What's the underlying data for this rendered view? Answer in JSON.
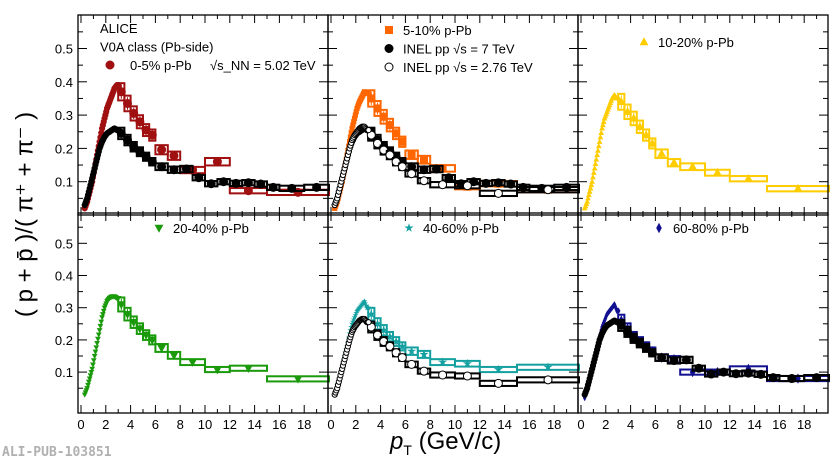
{
  "chart_data": {
    "type": "scatter",
    "title": "",
    "xlabel": "p_T (GeV/c)",
    "ylabel": "( p + p̄ )/( π⁺ + π⁻ )",
    "xlim": [
      -0.25,
      19.9
    ],
    "ylim": [
      0,
      0.6
    ],
    "x_ticks": [
      "0",
      "2",
      "4",
      "6",
      "8",
      "10",
      "12",
      "14",
      "16",
      "18"
    ],
    "y_ticks": [
      "0.1",
      "0.2",
      "0.3",
      "0.4",
      "0.5"
    ],
    "grid": false,
    "low_pt_x": [
      0.3,
      0.5,
      0.7,
      0.9,
      1.1,
      1.3,
      1.5,
      1.7,
      1.9,
      2.1,
      2.3,
      2.5,
      2.7,
      2.9
    ],
    "series": {
      "pp7": {
        "name": "INEL pp √s = 7 TeV",
        "color": "#000000",
        "marker": "circle",
        "filled": true,
        "low": [
          0.03,
          0.05,
          0.08,
          0.11,
          0.14,
          0.17,
          0.2,
          0.22,
          0.235,
          0.245,
          0.25,
          0.255,
          0.26,
          0.255
        ],
        "high": [
          [
            3.25,
            0.25,
            0.245
          ],
          [
            3.75,
            0.25,
            0.225
          ],
          [
            4.25,
            0.25,
            0.205
          ],
          [
            4.75,
            0.25,
            0.19
          ],
          [
            5.25,
            0.25,
            0.175
          ],
          [
            5.75,
            0.25,
            0.16
          ],
          [
            6.5,
            0.5,
            0.145
          ],
          [
            7.5,
            0.5,
            0.136
          ],
          [
            8.5,
            0.5,
            0.138
          ],
          [
            9.5,
            0.5,
            0.112
          ],
          [
            10.5,
            0.5,
            0.094
          ],
          [
            11.5,
            0.5,
            0.1
          ],
          [
            12.5,
            0.5,
            0.095
          ],
          [
            13.5,
            0.5,
            0.097
          ],
          [
            14.5,
            0.5,
            0.093
          ],
          [
            15.5,
            0.5,
            0.083
          ],
          [
            17,
            1,
            0.08
          ],
          [
            19,
            1,
            0.083
          ]
        ]
      },
      "pp276": {
        "name": "INEL pp √s = 2.76 TeV",
        "color": "#000000",
        "marker": "circle",
        "filled": false,
        "low": [
          0.03,
          0.05,
          0.08,
          0.11,
          0.14,
          0.17,
          0.2,
          0.225,
          0.24,
          0.25,
          0.26,
          0.265,
          0.265,
          0.255
        ],
        "high": [
          [
            3.25,
            0.25,
            0.24
          ],
          [
            3.75,
            0.25,
            0.215
          ],
          [
            4.25,
            0.25,
            0.195
          ],
          [
            4.75,
            0.25,
            0.18
          ],
          [
            5.25,
            0.25,
            0.16
          ],
          [
            5.75,
            0.25,
            0.145
          ],
          [
            6.5,
            0.5,
            0.124
          ],
          [
            7.5,
            0.5,
            0.103
          ],
          [
            9,
            1,
            0.091
          ],
          [
            11,
            1,
            0.088
          ],
          [
            13.5,
            1.5,
            0.065
          ],
          [
            17.5,
            2.5,
            0.076
          ]
        ]
      },
      "pPb0_5": {
        "name": "0-5% p-Pb",
        "color": "#a01010",
        "marker": "circle",
        "filled": true,
        "low": [
          0.02,
          0.04,
          0.07,
          0.1,
          0.14,
          0.18,
          0.22,
          0.26,
          0.29,
          0.32,
          0.34,
          0.36,
          0.38,
          0.39
        ],
        "high": [
          [
            3.25,
            0.25,
            0.37
          ],
          [
            3.75,
            0.25,
            0.335
          ],
          [
            4.25,
            0.25,
            0.305
          ],
          [
            4.75,
            0.25,
            0.28
          ],
          [
            5.25,
            0.25,
            0.255
          ],
          [
            5.75,
            0.25,
            0.24
          ],
          [
            6.5,
            0.5,
            0.196
          ],
          [
            7.5,
            0.5,
            0.178
          ],
          [
            9,
            1,
            0.135
          ],
          [
            11,
            1,
            0.16
          ],
          [
            13.5,
            1.5,
            0.073
          ],
          [
            17.5,
            2.5,
            0.068
          ]
        ]
      },
      "pPb5_10": {
        "name": "5-10% p-Pb",
        "color": "#ff6600",
        "marker": "square",
        "filled": true,
        "low": [
          0.02,
          0.04,
          0.07,
          0.1,
          0.14,
          0.18,
          0.22,
          0.26,
          0.29,
          0.32,
          0.34,
          0.355,
          0.37,
          0.365
        ],
        "high": [
          [
            3.25,
            0.25,
            0.35
          ],
          [
            3.75,
            0.25,
            0.32
          ],
          [
            4.25,
            0.25,
            0.295
          ],
          [
            4.75,
            0.25,
            0.27
          ],
          [
            5.25,
            0.25,
            0.245
          ],
          [
            5.75,
            0.25,
            0.22
          ],
          [
            6.5,
            0.5,
            0.181
          ],
          [
            7.5,
            0.5,
            0.166
          ],
          [
            9,
            1,
            0.14
          ],
          [
            11,
            1,
            0.085
          ],
          [
            13.5,
            1.5,
            0.094
          ],
          [
            17.5,
            2.5,
            0.076
          ]
        ]
      },
      "pPb10_20": {
        "name": "10-20% p-Pb",
        "color": "#ffcc00",
        "marker": "triangle-up",
        "filled": true,
        "low": [
          0.02,
          0.04,
          0.07,
          0.1,
          0.14,
          0.18,
          0.22,
          0.26,
          0.29,
          0.31,
          0.33,
          0.35,
          0.36,
          0.35
        ],
        "high": [
          [
            3.25,
            0.25,
            0.34
          ],
          [
            3.75,
            0.25,
            0.31
          ],
          [
            4.25,
            0.25,
            0.29
          ],
          [
            4.75,
            0.25,
            0.265
          ],
          [
            5.25,
            0.25,
            0.24
          ],
          [
            5.75,
            0.25,
            0.215
          ],
          [
            6.5,
            0.5,
            0.184
          ],
          [
            7.5,
            0.5,
            0.157
          ],
          [
            9,
            1,
            0.145
          ],
          [
            11,
            1,
            0.127
          ],
          [
            13.5,
            1.5,
            0.109
          ],
          [
            17.5,
            2.5,
            0.079
          ]
        ]
      },
      "pPb20_40": {
        "name": "20-40% p-Pb",
        "color": "#1a9a0a",
        "marker": "triangle-down",
        "filled": true,
        "low": [
          0.03,
          0.05,
          0.08,
          0.11,
          0.15,
          0.19,
          0.23,
          0.27,
          0.3,
          0.32,
          0.33,
          0.335,
          0.335,
          0.33
        ],
        "high": [
          [
            3.25,
            0.25,
            0.31
          ],
          [
            3.75,
            0.25,
            0.28
          ],
          [
            4.25,
            0.25,
            0.255
          ],
          [
            4.75,
            0.25,
            0.235
          ],
          [
            5.25,
            0.25,
            0.215
          ],
          [
            5.75,
            0.25,
            0.2
          ],
          [
            6.5,
            0.5,
            0.175
          ],
          [
            7.5,
            0.5,
            0.152
          ],
          [
            9,
            1,
            0.131
          ],
          [
            11,
            1,
            0.108
          ],
          [
            13.5,
            1.5,
            0.112
          ],
          [
            17.5,
            2.5,
            0.079
          ]
        ]
      },
      "pPb40_60": {
        "name": "40-60% p-Pb",
        "color": "#14a0a0",
        "marker": "star",
        "filled": true,
        "low": [
          0.03,
          0.05,
          0.08,
          0.11,
          0.15,
          0.18,
          0.22,
          0.25,
          0.27,
          0.29,
          0.3,
          0.31,
          0.32,
          0.3
        ],
        "high": [
          [
            3.25,
            0.25,
            0.28
          ],
          [
            3.75,
            0.25,
            0.25
          ],
          [
            4.25,
            0.25,
            0.23
          ],
          [
            4.75,
            0.25,
            0.21
          ],
          [
            5.25,
            0.25,
            0.195
          ],
          [
            5.75,
            0.25,
            0.18
          ],
          [
            6.5,
            0.5,
            0.165
          ],
          [
            7.5,
            0.5,
            0.155
          ],
          [
            9,
            1,
            0.131
          ],
          [
            11,
            1,
            0.126
          ],
          [
            13.5,
            1.5,
            0.108
          ],
          [
            17.5,
            2.5,
            0.115
          ]
        ]
      },
      "pPb60_80": {
        "name": "60-80% p-Pb",
        "color": "#101090",
        "marker": "diamond",
        "filled": true,
        "low": [
          0.02,
          0.05,
          0.08,
          0.11,
          0.15,
          0.18,
          0.21,
          0.24,
          0.26,
          0.28,
          0.29,
          0.3,
          0.31,
          0.29
        ],
        "high": [
          [
            3.25,
            0.25,
            0.26
          ],
          [
            3.75,
            0.25,
            0.235
          ],
          [
            4.25,
            0.25,
            0.21
          ],
          [
            4.75,
            0.25,
            0.195
          ],
          [
            5.25,
            0.25,
            0.18
          ],
          [
            5.75,
            0.25,
            0.165
          ],
          [
            6.5,
            0.5,
            0.145
          ],
          [
            7.5,
            0.5,
            0.14
          ],
          [
            9,
            1,
            0.1
          ],
          [
            11,
            1,
            0.1
          ],
          [
            13.5,
            1.5,
            0.11
          ],
          [
            17.5,
            2.5,
            0.08
          ]
        ]
      }
    },
    "panels": [
      {
        "series": [
          "pPb0_5",
          "pp7"
        ],
        "legend": [
          {
            "text": "ALICE"
          },
          {
            "text": "V0A class (Pb-side)"
          },
          {
            "series": "pPb0_5",
            "text": "0-5% p-Pb",
            "extra": "√s_NN = 5.02 TeV"
          }
        ]
      },
      {
        "series": [
          "pPb5_10",
          "pp7",
          "pp276"
        ],
        "legend": [
          {
            "series": "pPb5_10",
            "text": "5-10% p-Pb"
          },
          {
            "series": "pp7",
            "text": "INEL pp √s = 7 TeV"
          },
          {
            "series": "pp276",
            "text": "INEL pp √s = 2.76 TeV"
          }
        ]
      },
      {
        "series": [
          "pPb10_20"
        ],
        "legend": [
          {
            "series": "pPb10_20",
            "text": "10-20% p-Pb"
          }
        ]
      },
      {
        "series": [
          "pPb20_40"
        ],
        "legend": [
          {
            "series": "pPb20_40",
            "text": "20-40% p-Pb"
          }
        ]
      },
      {
        "series": [
          "pPb40_60",
          "pp276"
        ],
        "legend": [
          {
            "series": "pPb40_60",
            "text": "40-60% p-Pb"
          }
        ]
      },
      {
        "series": [
          "pPb60_80",
          "pp7"
        ],
        "legend": [
          {
            "series": "pPb60_80",
            "text": "60-80% p-Pb"
          }
        ]
      }
    ]
  },
  "labels": {
    "ylabel_text": "( p + p̄ )/( π⁺ + π⁻ )",
    "xlabel_p": "p",
    "xlabel_sub": "T",
    "xlabel_unit": " (GeV/c)",
    "watermark": "ALI-PUB-103851"
  }
}
